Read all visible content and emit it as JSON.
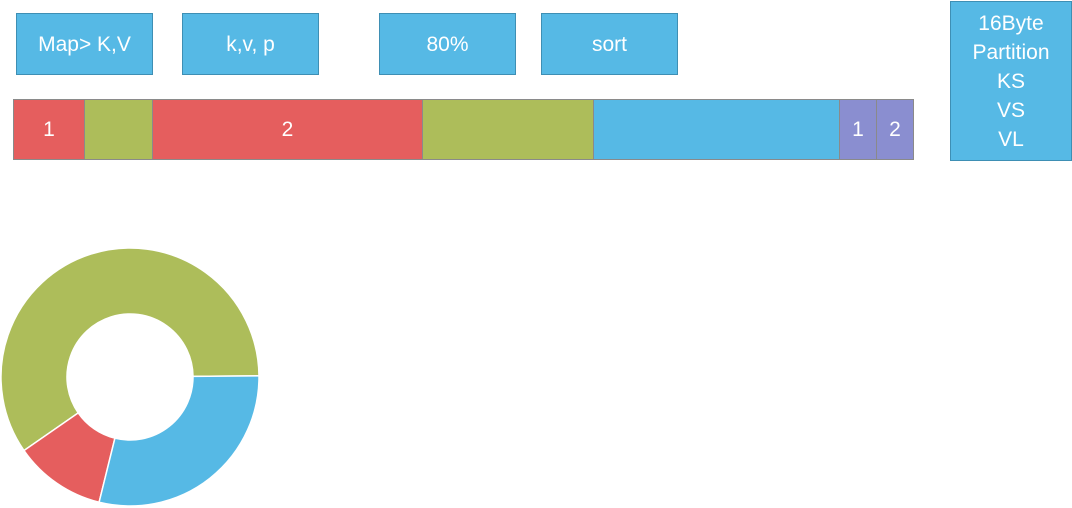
{
  "labels": [
    {
      "id": "map",
      "text": "Map> K,V"
    },
    {
      "id": "kvp",
      "text": "k,v, p"
    },
    {
      "id": "pct",
      "text": "80%"
    },
    {
      "id": "sort",
      "text": "sort"
    }
  ],
  "metadata_box": {
    "lines": [
      "16Byte",
      "Partition",
      "KS",
      "VS",
      "VL"
    ]
  },
  "buffer": {
    "segments": [
      {
        "label": "1",
        "color": "#e55e5e",
        "share": 71
      },
      {
        "label": "",
        "color": "#adbd5a",
        "share": 68
      },
      {
        "label": "2",
        "color": "#e55e5e",
        "share": 270
      },
      {
        "label": "",
        "color": "#adbd5a",
        "share": 171
      },
      {
        "label": "",
        "color": "#56b9e5",
        "share": 246
      },
      {
        "label": "1",
        "color": "#8a8ed0",
        "share": 37
      },
      {
        "label": "2",
        "color": "#8a8ed0",
        "share": 38
      }
    ]
  },
  "chart_data": {
    "type": "pie",
    "donut": true,
    "slices": [
      {
        "color": "#adbd5a",
        "value": 59.5
      },
      {
        "color": "#e55e5e",
        "value": 11.5
      },
      {
        "color": "#56b9e5",
        "value": 29
      }
    ]
  },
  "colors": {
    "box": "#56b9e5"
  }
}
